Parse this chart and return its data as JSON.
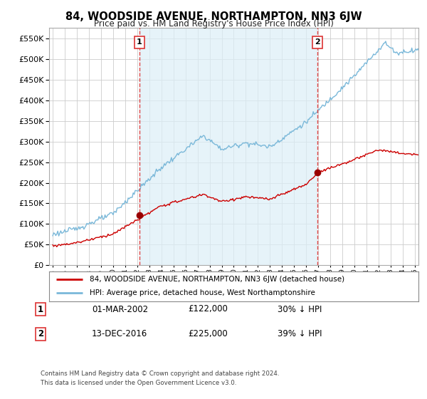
{
  "title": "84, WOODSIDE AVENUE, NORTHAMPTON, NN3 6JW",
  "subtitle": "Price paid vs. HM Land Registry's House Price Index (HPI)",
  "legend_line1": "84, WOODSIDE AVENUE, NORTHAMPTON, NN3 6JW (detached house)",
  "legend_line2": "HPI: Average price, detached house, West Northamptonshire",
  "transaction1": {
    "label": "1",
    "date": "01-MAR-2002",
    "price": "£122,000",
    "hpi": "30% ↓ HPI",
    "x_year": 2002.17,
    "y_value": 122000
  },
  "transaction2": {
    "label": "2",
    "date": "13-DEC-2016",
    "price": "£225,000",
    "hpi": "39% ↓ HPI",
    "x_year": 2016.95,
    "y_value": 225000
  },
  "footnote1": "Contains HM Land Registry data © Crown copyright and database right 2024.",
  "footnote2": "This data is licensed under the Open Government Licence v3.0.",
  "hpi_color": "#7ab8d9",
  "hpi_fill_color": "#dceef7",
  "price_color": "#cc0000",
  "vline_color": "#dd3333",
  "marker_color": "#990000",
  "background_color": "#ffffff",
  "plot_bg_color": "#ffffff",
  "grid_color": "#cccccc",
  "ylim": [
    0,
    575000
  ],
  "xlim_start": 1994.7,
  "xlim_end": 2025.3,
  "yticks": [
    0,
    50000,
    100000,
    150000,
    200000,
    250000,
    300000,
    350000,
    400000,
    450000,
    500000,
    550000
  ]
}
